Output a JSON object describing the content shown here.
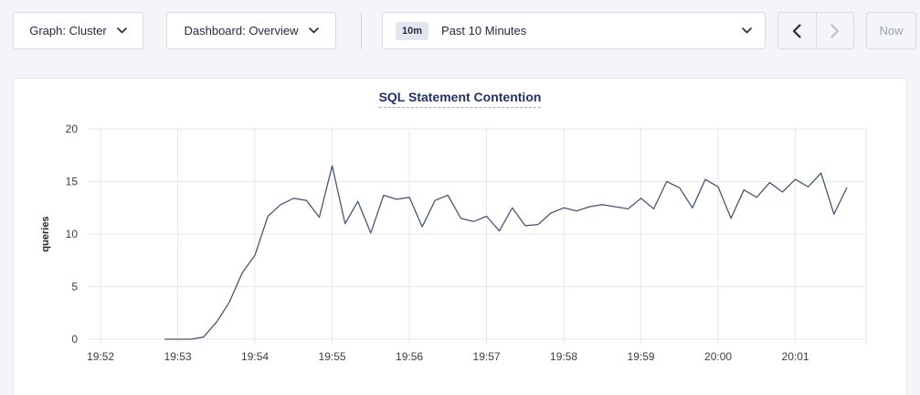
{
  "toolbar": {
    "graph_dropdown": {
      "label": "Graph: Cluster"
    },
    "dashboard_dropdown": {
      "label": "Dashboard: Overview"
    },
    "time_range": {
      "badge": "10m",
      "label": "Past 10 Minutes"
    },
    "time_nav": {
      "back_enabled": true,
      "forward_enabled": false
    },
    "now_button": {
      "label": "Now",
      "enabled": false
    }
  },
  "colors": {
    "page_background": "#f4f5f9",
    "panel_background": "#ffffff",
    "title_text": "#253166",
    "button_text": "#242a42",
    "disabled_text": "#9aa1b3",
    "gridline": "#e9eaec",
    "line": "#475872"
  },
  "chart_data": {
    "type": "line",
    "title": "SQL Statement Contention",
    "ylabel": "queries",
    "ylim": [
      0,
      20
    ],
    "yticks": [
      0,
      5,
      10,
      15,
      20
    ],
    "grid": true,
    "legend": "none",
    "line_color": "#475872",
    "x_axis": {
      "start_time": "19:51:50",
      "end_time": "20:01:55",
      "domain_seconds": [
        0,
        605
      ],
      "tick_labels": [
        "19:52",
        "19:53",
        "19:54",
        "19:55",
        "19:56",
        "19:57",
        "19:58",
        "19:59",
        "20:00",
        "20:01"
      ],
      "tick_offsets_seconds": [
        10,
        70,
        130,
        190,
        250,
        310,
        370,
        430,
        490,
        550
      ]
    },
    "series": [
      {
        "name": "queries",
        "start_time": "19:52:50",
        "start_offset_seconds": 60,
        "interval_seconds": 10,
        "values": [
          0,
          0,
          0,
          0.2,
          1.6,
          3.5,
          6.3,
          8.0,
          11.7,
          12.8,
          13.4,
          13.2,
          11.6,
          16.5,
          11.0,
          13.1,
          10.1,
          13.7,
          13.3,
          13.5,
          10.7,
          13.2,
          13.7,
          11.5,
          11.2,
          11.7,
          10.3,
          12.5,
          10.8,
          10.9,
          12.0,
          12.5,
          12.2,
          12.6,
          12.8,
          12.6,
          12.4,
          13.4,
          12.4,
          15.0,
          14.4,
          12.5,
          15.2,
          14.5,
          11.5,
          14.2,
          13.5,
          14.9,
          14.0,
          15.2,
          14.5,
          15.8,
          11.9,
          14.4
        ]
      }
    ]
  }
}
